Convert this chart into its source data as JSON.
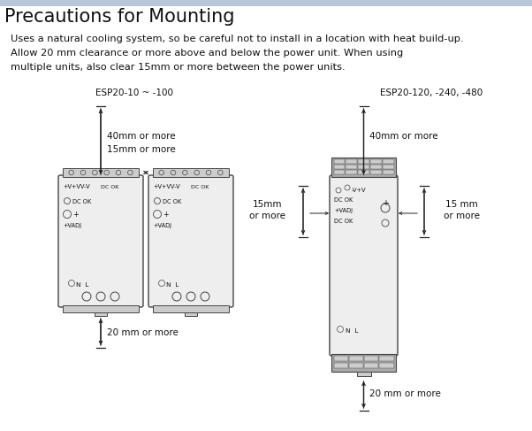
{
  "title": "Precautions for Mounting",
  "body_text": [
    "Uses a natural cooling system, so be careful not to install in a location with heat build-up.",
    "Allow 20 mm clearance or more above and below the power unit. When using",
    "multiple units, also clear 15mm or more between the power units."
  ],
  "label_left": "ESP20-10 ~ -100",
  "label_right": "ESP20-120, -240, -480",
  "bg_color": "#ffffff",
  "header_bg": "#b8c8d8",
  "box_fill": "#eeeeee",
  "box_border": "#444444",
  "connector_fill": "#cccccc",
  "connector_dark": "#999999",
  "text_color": "#111111",
  "dim_color": "#222222",
  "title_fontsize": 15,
  "body_fontsize": 8.2,
  "label_fontsize": 7.5,
  "dim_fontsize": 7.5,
  "inner_fontsize": 4.8
}
